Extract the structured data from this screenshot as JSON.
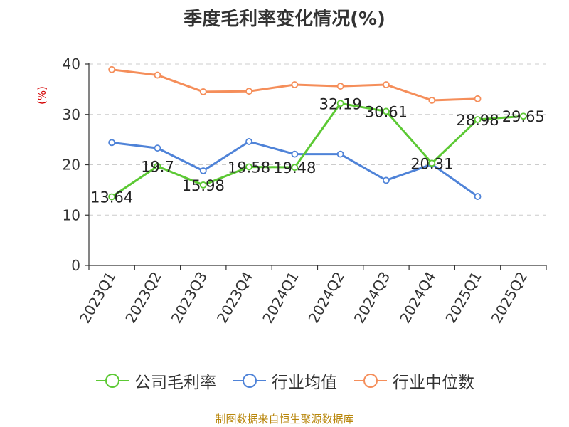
{
  "chart_data": {
    "type": "line",
    "title": "季度毛利率变化情况(%)",
    "ylabel": "(%)",
    "xlabel": "",
    "ylim": [
      0,
      40
    ],
    "yticks": [
      0,
      10,
      20,
      30,
      40
    ],
    "grid": true,
    "legend_position": "bottom",
    "categories": [
      "2023Q1",
      "2023Q2",
      "2023Q3",
      "2023Q4",
      "2024Q1",
      "2024Q2",
      "2024Q3",
      "2024Q4",
      "2025Q1",
      "2025Q2"
    ],
    "series": [
      {
        "name": "公司毛利率",
        "color": "#5cc934",
        "values": [
          13.64,
          19.7,
          15.98,
          19.58,
          19.48,
          32.19,
          30.61,
          20.31,
          28.98,
          29.65
        ],
        "show_labels": true
      },
      {
        "name": "行业均值",
        "color": "#4f83d8",
        "values": [
          24.4,
          23.3,
          18.8,
          24.6,
          22.1,
          22.1,
          16.9,
          20.1,
          13.7,
          null
        ],
        "show_labels": false
      },
      {
        "name": "行业中位数",
        "color": "#f58e5a",
        "values": [
          38.9,
          37.8,
          34.5,
          34.6,
          35.9,
          35.6,
          35.9,
          32.8,
          33.1,
          null
        ],
        "show_labels": false
      }
    ]
  },
  "source": "制图数据来自恒生聚源数据库"
}
